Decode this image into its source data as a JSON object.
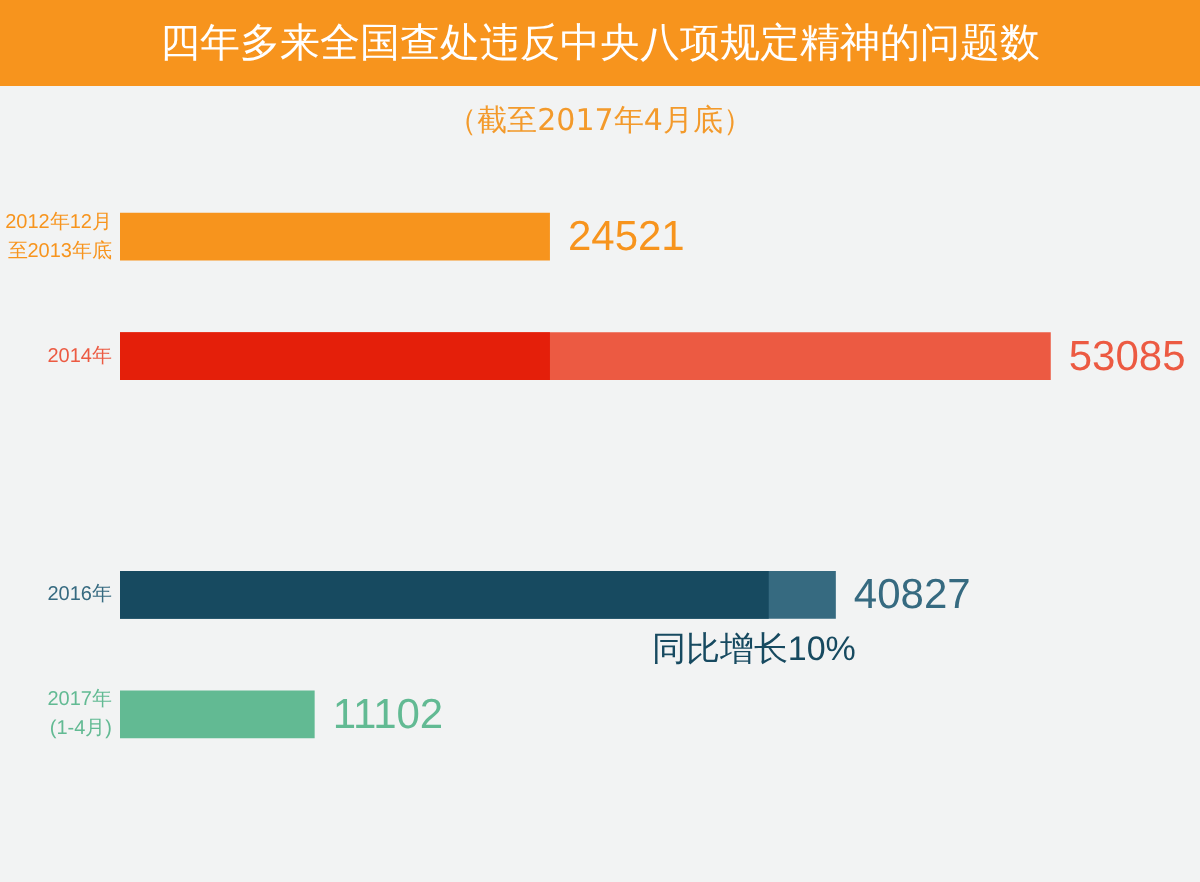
{
  "chart_data": {
    "type": "bar",
    "orientation": "horizontal",
    "title": "四年多来全国查处违反中央八项规定精神的问题数",
    "subtitle": "（截至2017年4月底）",
    "categories": [
      "2012年12月至2013年底",
      "2014年",
      null,
      "2016年",
      "2017年(1-4月)"
    ],
    "series": [
      {
        "colors": [
          "#f7941d",
          "#ec5a42",
          null,
          "#366a80",
          "#62ba93"
        ],
        "values": [
          24521,
          53085,
          null,
          40827,
          11102
        ],
        "value_labels": [
          "24521",
          "53085",
          null,
          "40827",
          "11102"
        ]
      },
      {
        "colors": [
          null,
          "#e41f0a",
          null,
          "#174a60",
          null
        ],
        "values": [
          null,
          24521,
          null,
          37000,
          null
        ]
      }
    ],
    "annotations": [
      {
        "text": "同比增长10%",
        "x": 40827,
        "y": "2016年"
      }
    ]
  }
}
